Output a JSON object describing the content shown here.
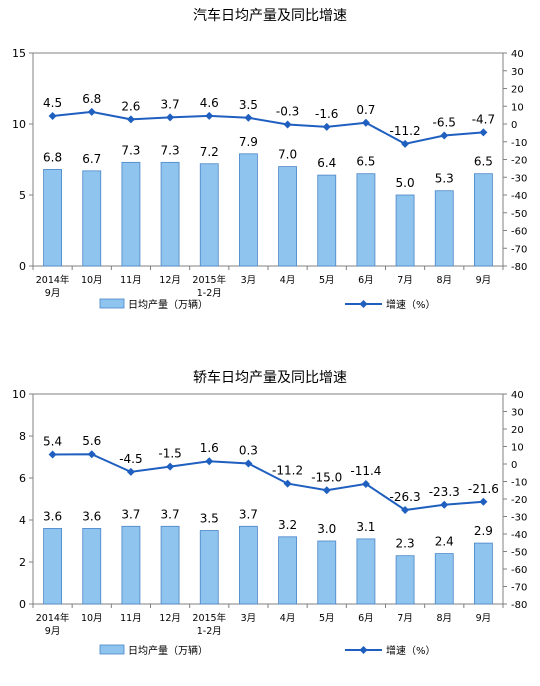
{
  "chart_data": [
    {
      "type": "bar+line",
      "title": "汽车日均产量及同比增速",
      "categories": [
        [
          "2014年",
          "9月"
        ],
        [
          "10月"
        ],
        [
          "11月"
        ],
        [
          "12月"
        ],
        [
          "2015年",
          "1-2月"
        ],
        [
          "3月"
        ],
        [
          "4月"
        ],
        [
          "5月"
        ],
        [
          "6月"
        ],
        [
          "7月"
        ],
        [
          "8月"
        ],
        [
          "9月"
        ]
      ],
      "series": [
        {
          "name": "日均产量（万辆）",
          "kind": "bar",
          "axis": "left",
          "values": [
            6.8,
            6.7,
            7.3,
            7.3,
            7.2,
            7.9,
            7.0,
            6.4,
            6.5,
            5.0,
            5.3,
            6.5
          ],
          "labels": [
            "6.8",
            "6.7",
            "7.3",
            "7.3",
            "7.2",
            "7.9",
            "7.0",
            "6.4",
            "6.5",
            "5.0",
            "5.3",
            "6.5"
          ]
        },
        {
          "name": "增速（%）",
          "kind": "line",
          "axis": "right",
          "values": [
            4.5,
            6.8,
            2.6,
            3.7,
            4.6,
            3.5,
            -0.3,
            -1.6,
            0.7,
            -11.2,
            -6.5,
            -4.7
          ],
          "labels": [
            "4.5",
            "6.8",
            "2.6",
            "3.7",
            "4.6",
            "3.5",
            "-0.3",
            "-1.6",
            "0.7",
            "-11.2",
            "-6.5",
            "-4.7"
          ]
        }
      ],
      "y_left": {
        "min": 0,
        "max": 15,
        "ticks": [
          0,
          5,
          10,
          15
        ]
      },
      "y_right": {
        "min": -80,
        "max": 40,
        "ticks": [
          40,
          30,
          20,
          10,
          0,
          -10,
          -20,
          -30,
          -40,
          -50,
          -60,
          -70,
          -80
        ]
      },
      "legend": "bottom",
      "colors": {
        "bar_fill": "#8ec4ee",
        "bar_stroke": "#4a86c8",
        "line": "#1f5fbf"
      }
    },
    {
      "type": "bar+line",
      "title": "轿车日均产量及同比增速",
      "categories": [
        [
          "2014年",
          "9月"
        ],
        [
          "10月"
        ],
        [
          "11月"
        ],
        [
          "12月"
        ],
        [
          "2015年",
          "1-2月"
        ],
        [
          "3月"
        ],
        [
          "4月"
        ],
        [
          "5月"
        ],
        [
          "6月"
        ],
        [
          "7月"
        ],
        [
          "8月"
        ],
        [
          "9月"
        ]
      ],
      "series": [
        {
          "name": "日均产量（万辆）",
          "kind": "bar",
          "axis": "left",
          "values": [
            3.6,
            3.6,
            3.7,
            3.7,
            3.5,
            3.7,
            3.2,
            3.0,
            3.1,
            2.3,
            2.4,
            2.9
          ],
          "labels": [
            "3.6",
            "3.6",
            "3.7",
            "3.7",
            "3.5",
            "3.7",
            "3.2",
            "3.0",
            "3.1",
            "2.3",
            "2.4",
            "2.9"
          ]
        },
        {
          "name": "增速（%）",
          "kind": "line",
          "axis": "right",
          "values": [
            5.4,
            5.6,
            -4.5,
            -1.5,
            1.6,
            0.3,
            -11.2,
            -15.0,
            -11.4,
            -26.3,
            -23.3,
            -21.6
          ],
          "labels": [
            "5.4",
            "5.6",
            "-4.5",
            "-1.5",
            "1.6",
            "0.3",
            "-11.2",
            "-15.0",
            "-11.4",
            "-26.3",
            "-23.3",
            "-21.6"
          ]
        }
      ],
      "y_left": {
        "min": 0,
        "max": 10,
        "ticks": [
          0,
          2,
          4,
          6,
          8,
          10
        ]
      },
      "y_right": {
        "min": -80,
        "max": 40,
        "ticks": [
          40,
          30,
          20,
          10,
          0,
          -10,
          -20,
          -30,
          -40,
          -50,
          -60,
          -70,
          -80
        ]
      },
      "legend": "bottom",
      "colors": {
        "bar_fill": "#8ec4ee",
        "bar_stroke": "#4a86c8",
        "line": "#1f5fbf"
      }
    }
  ]
}
